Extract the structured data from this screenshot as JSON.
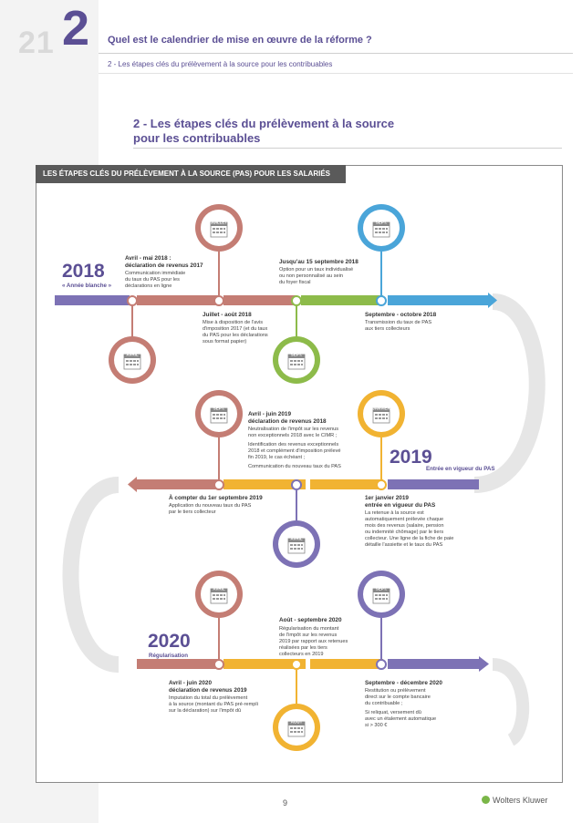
{
  "header": {
    "bg_number": "21",
    "chapter_number": "2",
    "chapter_title": "Quel est le calendrier de mise en œuvre de la réforme ?",
    "subtitle": "2 - Les étapes clés du prélèvement à la source pour les contribuables"
  },
  "section": {
    "title_line1": "2 - Les étapes clés du prélèvement à la source",
    "title_line2": "pour les contribuables"
  },
  "banner": "LES ÉTAPES CLÉS DU PRÉLÈVEMENT À LA SOURCE (PAS) POUR LES SALARIÉS",
  "colors": {
    "purple": "#5b4f94",
    "salmon": "#c47d74",
    "green": "#8dbb4a",
    "orange": "#f1b332",
    "blue": "#4aa5d9",
    "grey": "#e6e6e6"
  },
  "y2018": {
    "year": "2018",
    "label": "« Année blanche »",
    "items": [
      {
        "title": "Avril - mai 2018 :",
        "title2": "déclaration de revenus 2017",
        "lines": [
          "Communication immédiate",
          "du taux du PAS pour les",
          "déclarations en ligne"
        ]
      },
      {
        "title": "Juillet - août 2018",
        "lines": [
          "Mise à disposition de l'avis",
          "d'imposition 2017 (et du taux",
          "du PAS pour les déclarations",
          "sous format papier)"
        ]
      },
      {
        "title": "Jusqu'au 15 septembre 2018",
        "lines": [
          "Option pour un taux individualisé",
          "ou non personnalisé au sein",
          "du foyer fiscal"
        ]
      },
      {
        "title": "Septembre - octobre 2018",
        "lines": [
          "Transmission du taux de PAS",
          "aux tiers collecteurs"
        ]
      }
    ],
    "calendars": [
      "JUILLET",
      "AVRIL",
      "SEPT.",
      "SEPT."
    ]
  },
  "y2019": {
    "year": "2019",
    "label": "Entrée en vigueur du PAS",
    "items": [
      {
        "title": "Avril - juin 2019",
        "title2": "déclaration de revenus 2018",
        "lines": [
          "Neutralisation de l'impôt sur les revenus",
          "non exceptionnels 2018 avec le CIMR ;",
          "",
          "Identification des revenus exceptionnels",
          "2018 et complément d'imposition prélevé",
          "fin 2019, le cas échéant ;",
          "",
          "Communication du nouveau taux du PAS"
        ]
      },
      {
        "title": "À compter du 1er septembre 2019",
        "lines": [
          "Application du nouveau taux du PAS",
          "par le tiers collecteur"
        ]
      },
      {
        "title": "1er janvier 2019",
        "title2": "entrée en vigueur du PAS",
        "lines": [
          "La retenue à la source est",
          "automatiquement prélevée chaque",
          "mois des revenus (salaire, pension",
          "ou indemnité chômage) par le tiers",
          "collecteur. Une ligne de la fiche de paie",
          "détaille l'assiette et le taux du PAS"
        ]
      }
    ],
    "calendars": [
      "SEPT.",
      "JANVIER",
      "AVRIL"
    ]
  },
  "y2020": {
    "year": "2020",
    "label": "Régularisation",
    "items": [
      {
        "title": "Août - septembre 2020",
        "lines": [
          "Régularisation du montant",
          "de l'impôt sur les revenus",
          "2019 par rapport aux retenues",
          "réalisées par les tiers",
          "collecteurs en 2019"
        ]
      },
      {
        "title": "Avril - juin 2020",
        "title2": "déclaration de revenus 2019",
        "lines": [
          "Imputation du total du prélèvement",
          "à la source (montant du PAS pré-rempli",
          "sur la déclaration) sur l'impôt dû"
        ]
      },
      {
        "title": "Septembre - décembre 2020",
        "lines": [
          "Restitution ou prélèvement",
          "direct sur le compte bancaire",
          "du contribuable ;",
          "",
          "Si reliquat, versement dû",
          "avec un étalement automatique",
          "si > 300 €"
        ]
      }
    ],
    "calendars": [
      "AVRIL",
      "SEPT.",
      "AOÛT"
    ]
  },
  "footer": {
    "page": "9",
    "brand": "Wolters Kluwer"
  }
}
